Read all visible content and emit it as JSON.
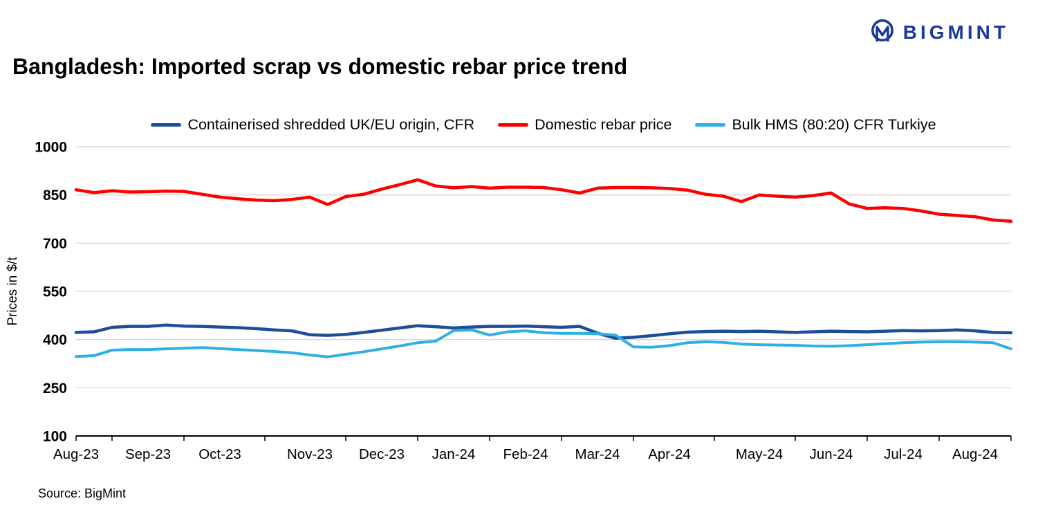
{
  "logo": {
    "text": "BIGMINT",
    "color": "#1A3A99"
  },
  "header": {
    "title": "Bangladesh: Imported scrap vs domestic rebar price trend"
  },
  "source": {
    "label": "Source: BigMint"
  },
  "chart_data": {
    "type": "line",
    "title": "Bangladesh: Imported scrap vs domestic rebar price trend",
    "xlabel": "",
    "ylabel": "Prices in $/t",
    "ylim": [
      100,
      1000
    ],
    "yticks": [
      100,
      250,
      400,
      550,
      700,
      850,
      1000
    ],
    "grid": "horizontal",
    "legend_position": "top",
    "x_tick_labels": [
      "Aug-23",
      "Sep-23",
      "Oct-23",
      "Nov-23",
      "Dec-23",
      "Jan-24",
      "Feb-24",
      "Mar-24",
      "Apr-24",
      "May-24",
      "Jun-24",
      "Jul-24",
      "Aug-24"
    ],
    "label_indices": [
      0,
      4,
      8,
      13,
      17,
      21,
      25,
      29,
      33,
      38,
      42,
      46,
      50
    ],
    "n_points": 53,
    "series": [
      {
        "name": "Containerised shredded UK/EU origin, CFR",
        "color": "#1F4E99",
        "stroke_width": 4.5,
        "values": [
          422,
          424,
          438,
          441,
          441,
          445,
          442,
          441,
          439,
          437,
          434,
          430,
          427,
          415,
          413,
          416,
          422,
          429,
          436,
          443,
          440,
          436,
          439,
          441,
          441,
          442,
          440,
          438,
          441,
          420,
          404,
          407,
          412,
          418,
          423,
          425,
          426,
          425,
          426,
          424,
          422,
          424,
          426,
          425,
          424,
          426,
          428,
          427,
          428,
          430,
          427,
          422,
          421
        ]
      },
      {
        "name": "Domestic rebar price",
        "color": "#FF0000",
        "stroke_width": 4.5,
        "values": [
          866,
          857,
          863,
          859,
          860,
          862,
          861,
          852,
          843,
          838,
          834,
          832,
          836,
          843,
          820,
          845,
          852,
          868,
          882,
          897,
          878,
          872,
          876,
          871,
          874,
          874,
          873,
          866,
          856,
          871,
          873,
          873,
          872,
          870,
          865,
          852,
          846,
          829,
          850,
          846,
          843,
          848,
          856,
          822,
          808,
          810,
          808,
          800,
          790,
          786,
          782,
          772,
          768
        ]
      },
      {
        "name": "Bulk HMS (80:20) CFR Turkiye",
        "color": "#2EB0E4",
        "stroke_width": 4,
        "values": [
          347,
          350,
          367,
          369,
          369,
          371,
          373,
          375,
          372,
          369,
          366,
          363,
          359,
          352,
          346,
          354,
          362,
          371,
          380,
          390,
          395,
          428,
          430,
          414,
          424,
          427,
          421,
          419,
          419,
          418,
          414,
          377,
          376,
          381,
          390,
          393,
          391,
          386,
          384,
          383,
          382,
          380,
          379,
          381,
          384,
          387,
          390,
          392,
          393,
          393,
          392,
          390,
          371
        ]
      }
    ]
  }
}
